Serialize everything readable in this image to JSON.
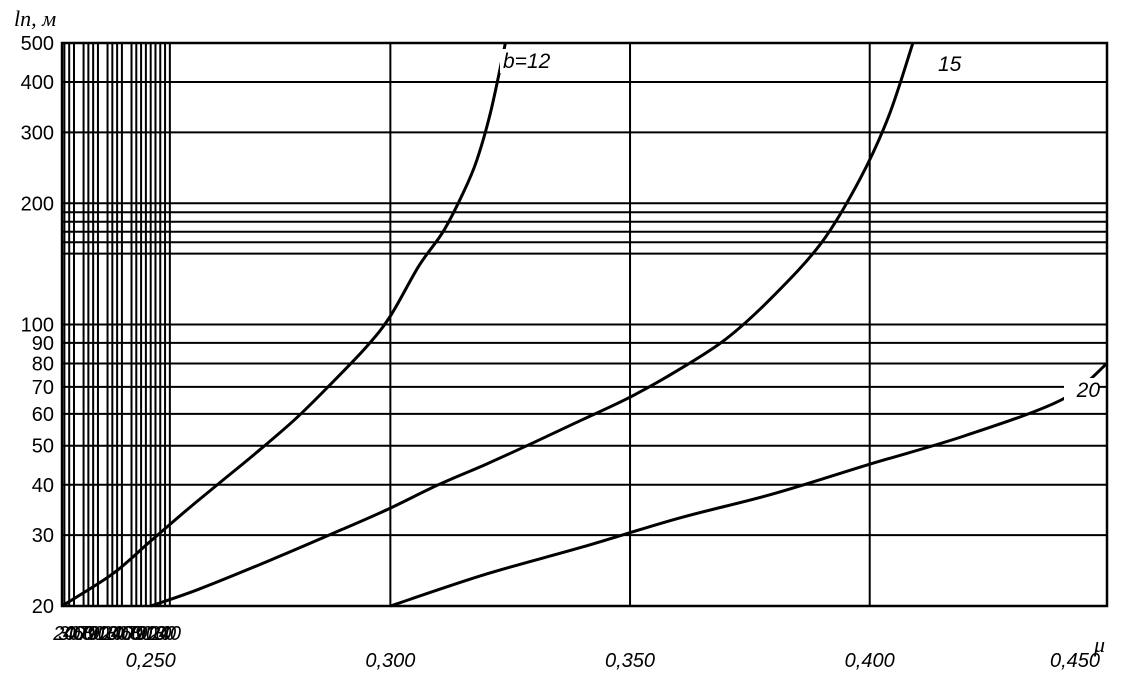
{
  "chart_data": {
    "type": "line",
    "ylabel": "lп, м",
    "xlabel": "μ",
    "y_scale": "log",
    "ylim": [
      20,
      500
    ],
    "xlim": [
      0.2315,
      0.4495
    ],
    "grid": true,
    "y_ticks": [
      20,
      30,
      40,
      50,
      60,
      70,
      80,
      90,
      100,
      200,
      300,
      400,
      500
    ],
    "y_tick_labels": [
      "20",
      "30",
      "40",
      "50",
      "60",
      "70",
      "80",
      "90",
      "100",
      "200",
      "300",
      "400",
      "500"
    ],
    "y_extra_gridlines": [
      150,
      160,
      170,
      180,
      190
    ],
    "x_minor_ticks": [
      {
        "value": 0.232,
        "label": "20"
      },
      {
        "value": 0.233,
        "label": "30"
      },
      {
        "value": 0.234,
        "label": "40"
      },
      {
        "value": 0.236,
        "label": "60"
      },
      {
        "value": 0.237,
        "label": "70"
      },
      {
        "value": 0.238,
        "label": "80"
      },
      {
        "value": 0.239,
        "label": "90"
      },
      {
        "value": 0.241,
        "label": "10"
      },
      {
        "value": 0.242,
        "label": "20"
      },
      {
        "value": 0.243,
        "label": "30"
      },
      {
        "value": 0.244,
        "label": "40"
      },
      {
        "value": 0.246,
        "label": "60"
      },
      {
        "value": 0.247,
        "label": "70"
      },
      {
        "value": 0.248,
        "label": "80"
      },
      {
        "value": 0.249,
        "label": "90"
      },
      {
        "value": 0.251,
        "label": "10"
      },
      {
        "value": 0.252,
        "label": "20"
      },
      {
        "value": 0.253,
        "label": "30"
      },
      {
        "value": 0.254,
        "label": "40"
      }
    ],
    "x_major_ticks": [
      {
        "value": 0.25,
        "label": "0,250"
      },
      {
        "value": 0.3,
        "label": "0,300"
      },
      {
        "value": 0.35,
        "label": "0,350"
      },
      {
        "value": 0.4,
        "label": "0,400"
      },
      {
        "value": 0.45,
        "label": "0,450"
      }
    ],
    "series": [
      {
        "name": "b=12",
        "x": [
          0.2315,
          0.242,
          0.25,
          0.258,
          0.265,
          0.272,
          0.28,
          0.287,
          0.295,
          0.3,
          0.306,
          0.311,
          0.315,
          0.318,
          0.321,
          0.324
        ],
        "y": [
          20,
          24,
          29,
          35,
          41,
          48,
          58,
          70,
          88,
          105,
          140,
          170,
          210,
          255,
          340,
          500
        ]
      },
      {
        "name": "15",
        "x": [
          0.25,
          0.26,
          0.275,
          0.29,
          0.3,
          0.31,
          0.32,
          0.33,
          0.34,
          0.35,
          0.36,
          0.37,
          0.38,
          0.39,
          0.398,
          0.404,
          0.409
        ],
        "y": [
          20,
          22,
          26,
          31,
          35,
          40,
          45,
          51,
          58,
          66,
          77,
          92,
          118,
          160,
          230,
          330,
          500
        ]
      },
      {
        "name": "20",
        "x": [
          0.3,
          0.32,
          0.34,
          0.36,
          0.38,
          0.4,
          0.42,
          0.44,
          0.4495
        ],
        "y": [
          20,
          24,
          28,
          33,
          38,
          45,
          53,
          65,
          80
        ]
      }
    ]
  }
}
